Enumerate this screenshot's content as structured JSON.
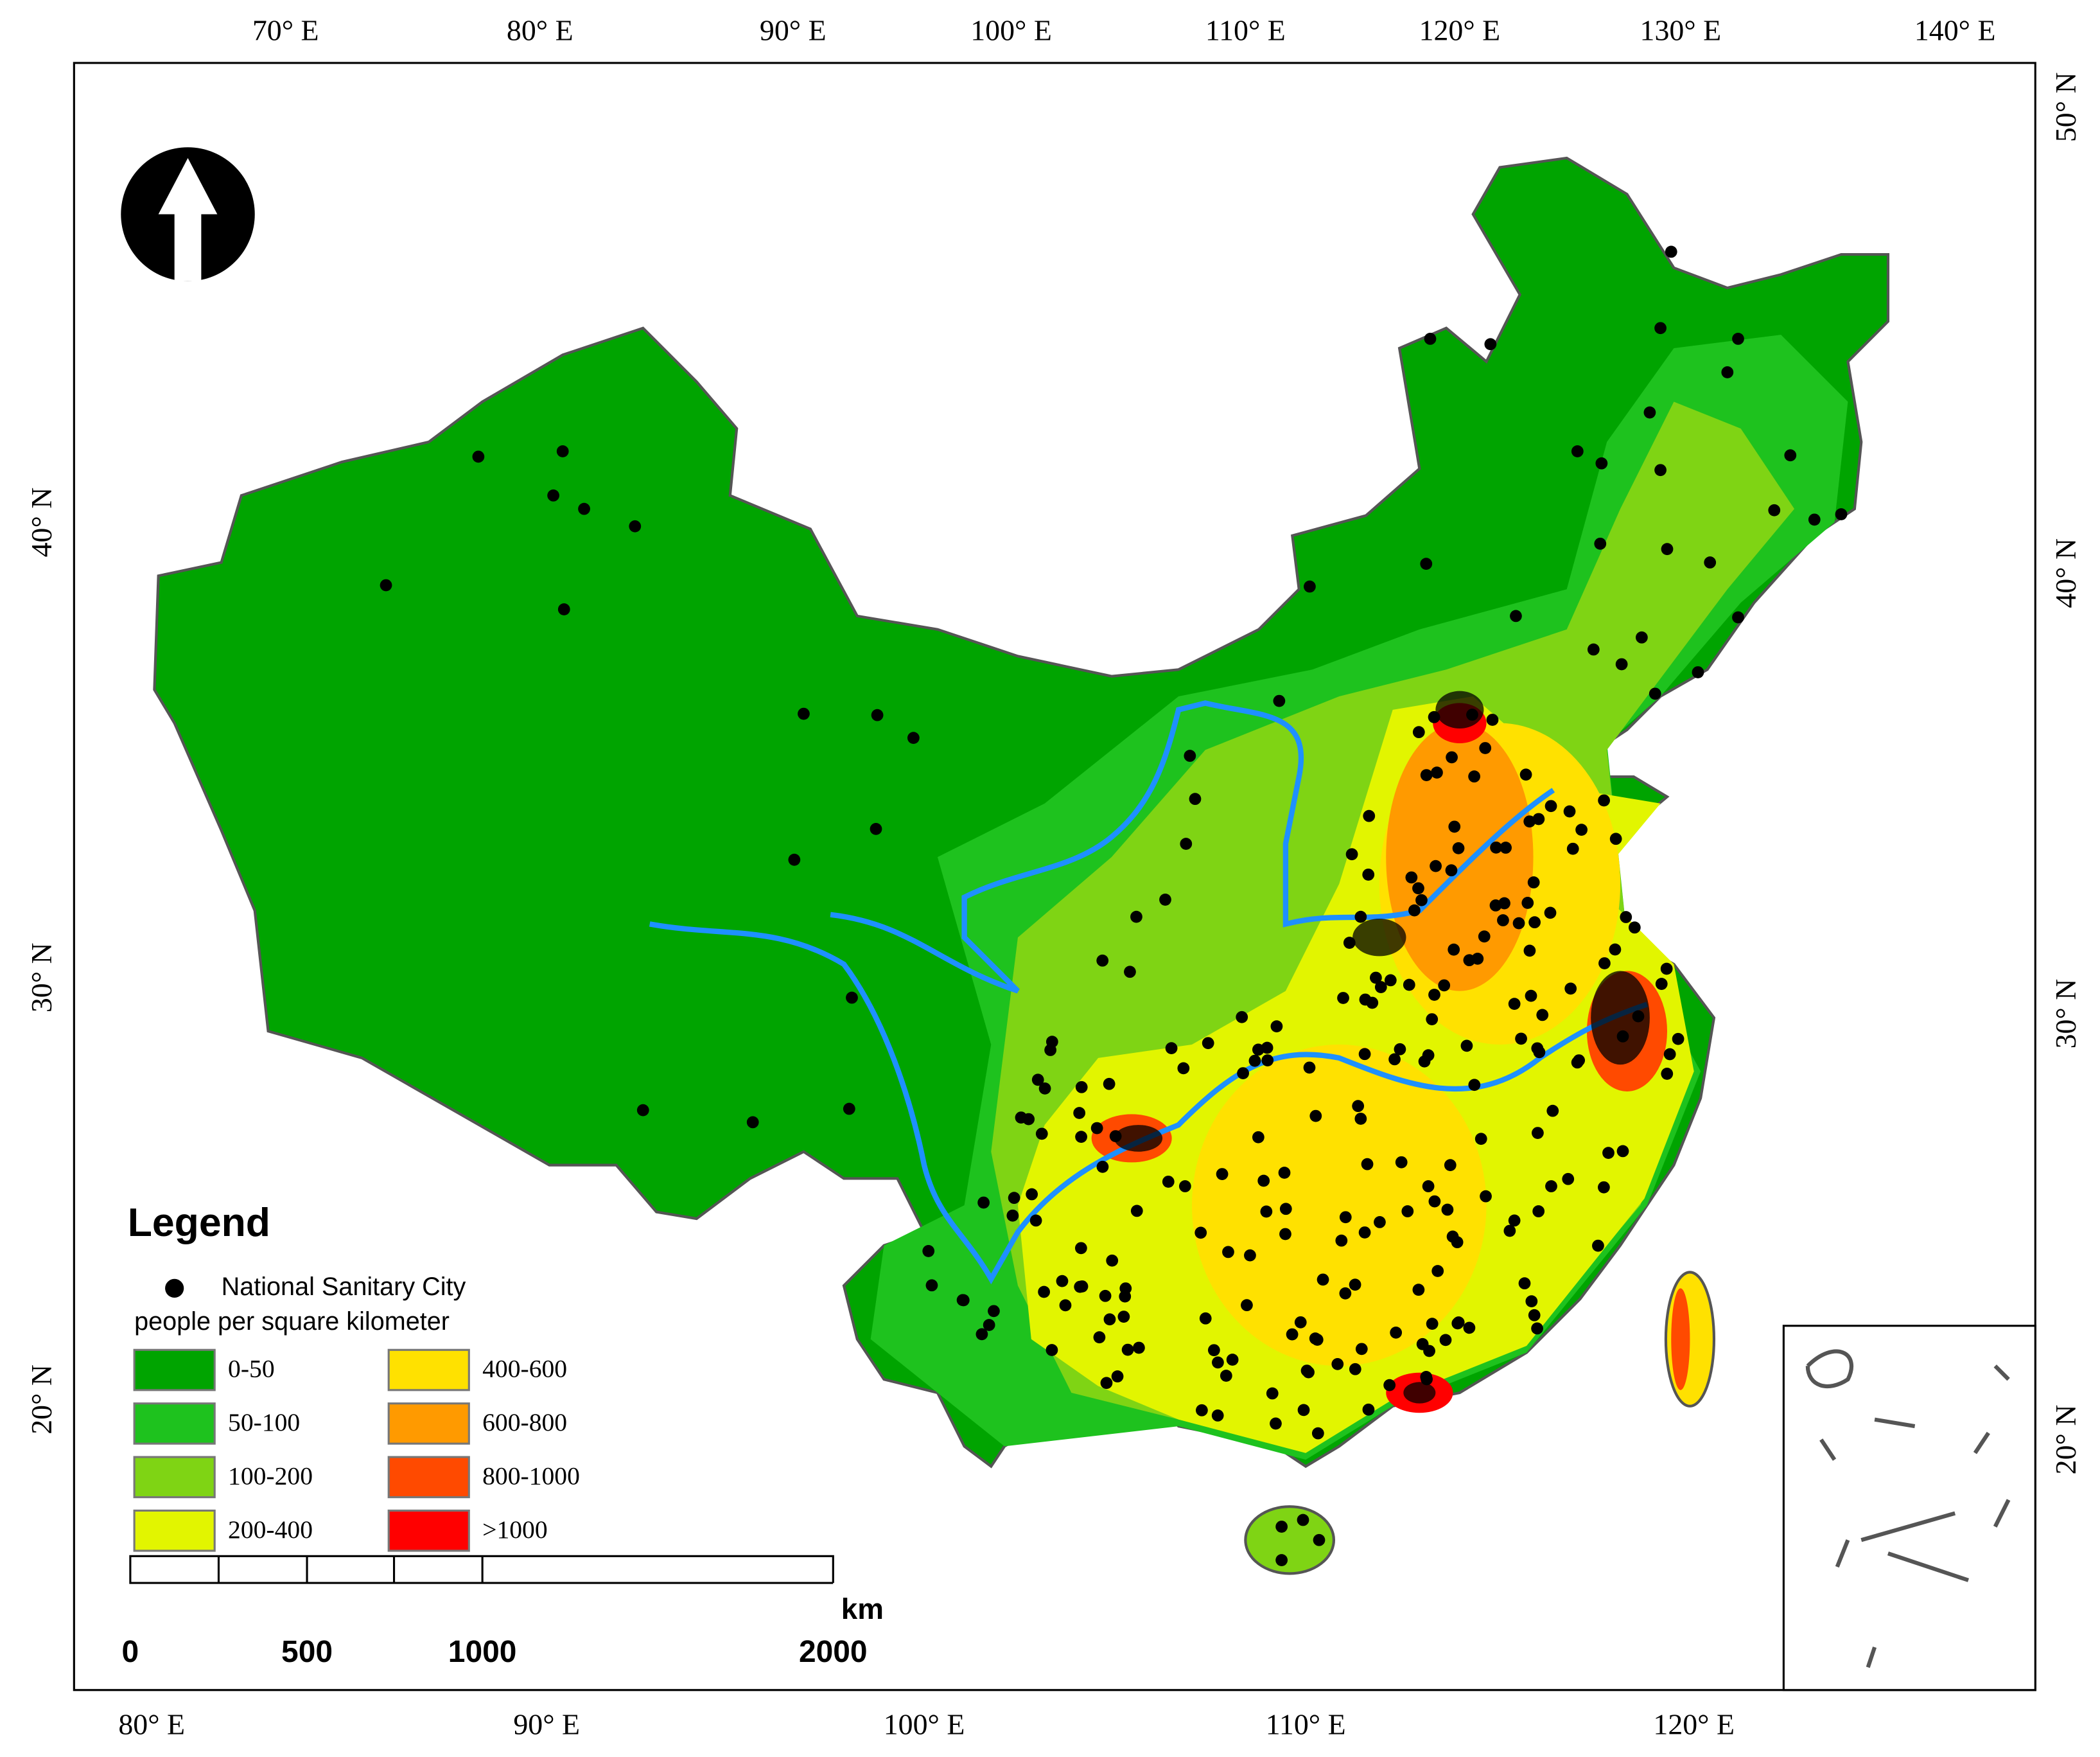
{
  "graticule": {
    "top": [
      "70° E",
      "80° E",
      "90° E",
      "100° E",
      "110° E",
      "120° E",
      "130° E",
      "140° E"
    ],
    "bottom": [
      "80° E",
      "90° E",
      "100° E",
      "110° E",
      "120° E"
    ],
    "left": [
      "40° N",
      "30° N",
      "20° N"
    ],
    "right": [
      "50° N",
      "40° N",
      "30° N",
      "20° N"
    ]
  },
  "legend": {
    "title": "Legend",
    "city": "National Sanitary City",
    "density_title": "people per square kilometer",
    "classes": [
      {
        "label": "0-50",
        "color": "#00a400"
      },
      {
        "label": "50-100",
        "color": "#1ec21e"
      },
      {
        "label": "100-200",
        "color": "#7fd414"
      },
      {
        "label": "200-400",
        "color": "#e2f500"
      },
      {
        "label": "400-600",
        "color": "#ffe100"
      },
      {
        "label": "600-800",
        "color": "#ff9a00"
      },
      {
        "label": "800-1000",
        "color": "#ff4a00"
      },
      {
        "label": ">1000",
        "color": "#ff0000"
      }
    ]
  },
  "scale_bar": {
    "labels": [
      "0",
      "500",
      "1000",
      "2000"
    ],
    "unit": "km"
  }
}
